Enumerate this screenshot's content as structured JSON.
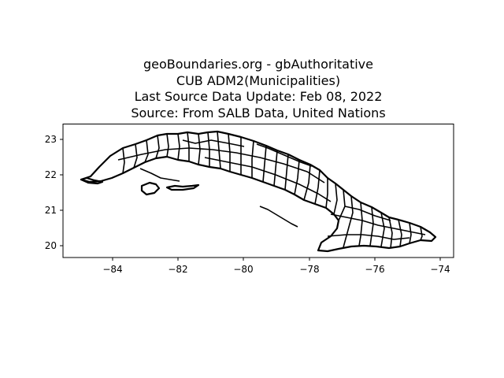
{
  "title_lines": [
    "geoBoundaries.org - gbAuthoritative",
    "CUB ADM2(Municipalities)",
    "Last Source Data Update: Feb 08, 2022",
    "Source: From SALB Data, United Nations"
  ],
  "map": {
    "x_ticks": [
      -84,
      -82,
      -80,
      -78,
      -76,
      -74
    ],
    "y_ticks": [
      20,
      21,
      22,
      23
    ],
    "xlim": [
      -85.5,
      -73.6
    ],
    "ylim": [
      19.65,
      23.45
    ],
    "outline_color": "#000000"
  }
}
